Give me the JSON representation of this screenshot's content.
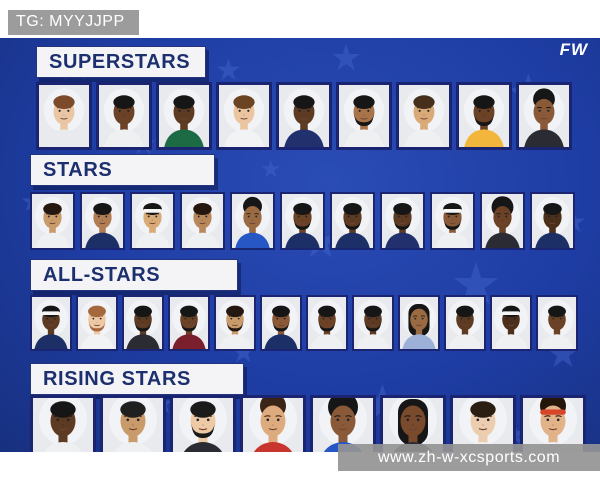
{
  "overlay": {
    "tg_badge": "TG: MYYJJPP",
    "brand": "FW",
    "watermark": "www.zh-w-xcsports.com"
  },
  "colors": {
    "panel_blue": "#1e3da4",
    "star_blue": "#4466cc",
    "label_text_navy": "#1c2f6e",
    "label_box_white": "#f4f4f6",
    "photo_frame_navy": "#1b2470",
    "badge_gray": "#9c9c9c",
    "watermark_gray": "#949494",
    "overlay_text_white": "#ffffff"
  },
  "tiers": [
    {
      "label": "SUPERSTARS",
      "players": [
        {
          "s": "#eac7a4",
          "h": "#7b4b2b",
          "st": "short",
          "j": "#e9eaee"
        },
        {
          "s": "#6b4226",
          "h": "#161616",
          "st": "braids",
          "j": "#eef0f2"
        },
        {
          "s": "#5d3a22",
          "h": "#161616",
          "st": "short",
          "j": "#1d6b45"
        },
        {
          "s": "#eac5a0",
          "h": "#6b4423",
          "st": "short",
          "j": "#f2f3f5"
        },
        {
          "s": "#5d3a22",
          "h": "#161616",
          "st": "short",
          "j": "#22306e"
        },
        {
          "s": "#a9744a",
          "h": "#161616",
          "st": "short",
          "bd": true,
          "j": "#eef0f2"
        },
        {
          "s": "#d9a977",
          "h": "#46301c",
          "st": "short",
          "j": "#eef0f2"
        },
        {
          "s": "#6b4226",
          "h": "#161616",
          "st": "short",
          "bd": true,
          "j": "#f2b63c"
        },
        {
          "s": "#8a5a38",
          "h": "#161616",
          "st": "curly",
          "j": "#2b2b33"
        }
      ]
    },
    {
      "label": "STARS",
      "players": [
        {
          "s": "#c99a6a",
          "h": "#241810",
          "st": "braids",
          "j": "#eef0f2"
        },
        {
          "s": "#b07e52",
          "h": "#161616",
          "st": "short",
          "j": "#1c2f66"
        },
        {
          "s": "#d9a977",
          "h": "#161616",
          "st": "short",
          "band": "#f5f5f5",
          "j": "#eef0f2"
        },
        {
          "s": "#b8875a",
          "h": "#241810",
          "st": "braids",
          "j": "#eef0f2"
        },
        {
          "s": "#9a6a42",
          "h": "#161616",
          "st": "curly",
          "j": "#2657c4"
        },
        {
          "s": "#6b4226",
          "h": "#161616",
          "st": "short",
          "bd": true,
          "j": "#1c2f66"
        },
        {
          "s": "#5d3a22",
          "h": "#161616",
          "st": "short",
          "bd": true,
          "j": "#1c2f66"
        },
        {
          "s": "#5d3a22",
          "h": "#161616",
          "st": "short",
          "bd": true,
          "j": "#22306e"
        },
        {
          "s": "#8a5a38",
          "h": "#161616",
          "st": "short",
          "band": "#f5f5f5",
          "bd": true,
          "j": "#eef0f2"
        },
        {
          "s": "#6b4226",
          "h": "#161616",
          "st": "afro",
          "j": "#2b2b33"
        },
        {
          "s": "#4c2f1b",
          "h": "#161616",
          "st": "short",
          "j": "#1c2f66"
        }
      ]
    },
    {
      "label": "ALL-STARS",
      "players": [
        {
          "s": "#5d3a22",
          "h": "#161616",
          "st": "short",
          "band": "#f5f5f5",
          "j": "#1c2f66"
        },
        {
          "s": "#edc9a5",
          "h": "#a5683c",
          "st": "short",
          "bd": true,
          "j": "#f2f3f5"
        },
        {
          "s": "#5d3a22",
          "h": "#161616",
          "st": "short",
          "bd": true,
          "j": "#2b2b33"
        },
        {
          "s": "#6b4226",
          "h": "#161616",
          "st": "short",
          "bd": true,
          "j": "#7a1f2b"
        },
        {
          "s": "#c99a6a",
          "h": "#241810",
          "st": "short",
          "bd": true,
          "j": "#eef0f2"
        },
        {
          "s": "#8a5a38",
          "h": "#161616",
          "st": "short",
          "bd": true,
          "j": "#1c2f66"
        },
        {
          "s": "#6b4226",
          "h": "#161616",
          "st": "braids",
          "bd": true,
          "j": "#eef0f2"
        },
        {
          "s": "#5d3a22",
          "h": "#161616",
          "st": "short",
          "bd": true,
          "j": "#eef0f2"
        },
        {
          "s": "#9a6a42",
          "h": "#161616",
          "st": "long",
          "j": "#9db1d8"
        },
        {
          "s": "#5d3a22",
          "h": "#161616",
          "st": "short",
          "j": "#eef0f2"
        },
        {
          "s": "#4c2f1b",
          "h": "#161616",
          "st": "short",
          "band": "#f5f5f5",
          "j": "#eef0f2"
        },
        {
          "s": "#6b4226",
          "h": "#161616",
          "st": "short",
          "j": "#eef0f2"
        }
      ]
    },
    {
      "label": "RISING STARS",
      "players": [
        {
          "s": "#5d3a22",
          "h": "#161616",
          "st": "braids",
          "j": "#eef0f2"
        },
        {
          "s": "#c99a6a",
          "h": "#1f1f1f",
          "st": "short",
          "j": "#eef0f2"
        },
        {
          "s": "#edc9a5",
          "h": "#1a1a1a",
          "st": "short",
          "bd": true,
          "j": "#2b2b33"
        },
        {
          "s": "#ddab7e",
          "h": "#3a2415",
          "st": "curly",
          "j": "#c8342e"
        },
        {
          "s": "#8a5a38",
          "h": "#161616",
          "st": "afro",
          "j": "#2657c4"
        },
        {
          "s": "#7a4a2c",
          "h": "#161616",
          "st": "long",
          "j": "#2b2b33"
        },
        {
          "s": "#eccdb0",
          "h": "#2a1d12",
          "st": "short",
          "j": "#eef0f2"
        },
        {
          "s": "#e2b288",
          "h": "#241608",
          "st": "curly",
          "band": "#d8442a",
          "j": "#eef0f2"
        }
      ]
    }
  ]
}
